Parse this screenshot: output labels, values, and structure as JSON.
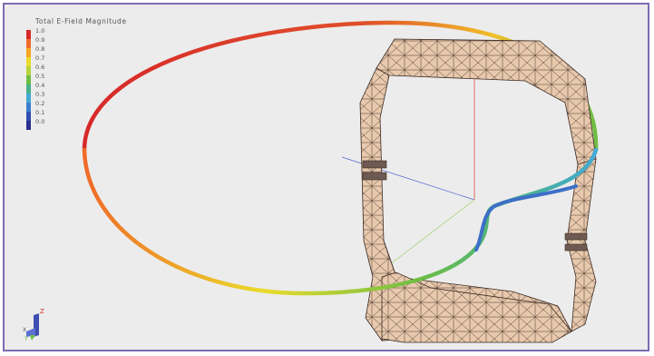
{
  "legend": {
    "title": "Total E-Field Magnitude",
    "labels": [
      "1.0",
      "0.9",
      "0.8",
      "0.7",
      "0.6",
      "0.5",
      "0.4",
      "0.3",
      "0.2",
      "0.1",
      "0.0"
    ],
    "colors": [
      "#d7282a",
      "#f06a28",
      "#f6a623",
      "#eadb2a",
      "#b8d33a",
      "#6fbe44",
      "#47b28a",
      "#43aad6",
      "#3d7fd0",
      "#2f4fb0",
      "#2a2f8c"
    ]
  },
  "axes": {
    "x_label": "X",
    "y_label": "Y",
    "z_label": "Z"
  },
  "colors": {
    "frame_border": "#7d6bb3",
    "background": "#ececec",
    "mesh_fill": "#e8c9ad",
    "mesh_edge": "#3b2a22"
  }
}
